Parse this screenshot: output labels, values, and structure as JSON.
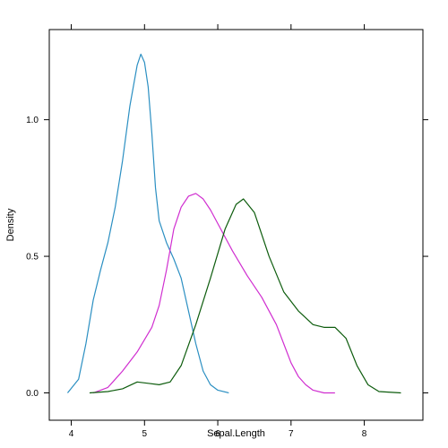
{
  "chart_data": {
    "type": "line",
    "xlabel": "Sepal.Length",
    "ylabel": "Density",
    "xlim": [
      3.7,
      8.8
    ],
    "ylim": [
      -0.1,
      1.33
    ],
    "x_ticks": [
      4,
      5,
      6,
      7,
      8
    ],
    "x_tick_labels": [
      "4",
      "5",
      "6",
      "7",
      "8"
    ],
    "y_ticks": [
      0.0,
      0.5,
      1.0
    ],
    "y_tick_labels": [
      "0.0",
      "0.5",
      "1.0"
    ],
    "grid": false,
    "series": [
      {
        "color": "#2b8fc2",
        "x": [
          3.95,
          4.1,
          4.2,
          4.3,
          4.4,
          4.5,
          4.6,
          4.7,
          4.8,
          4.9,
          4.95,
          5.0,
          5.05,
          5.1,
          5.15,
          5.2,
          5.3,
          5.4,
          5.5,
          5.6,
          5.7,
          5.8,
          5.9,
          6.0,
          6.15
        ],
        "y": [
          0.0,
          0.05,
          0.18,
          0.34,
          0.45,
          0.55,
          0.68,
          0.85,
          1.05,
          1.2,
          1.24,
          1.21,
          1.12,
          0.95,
          0.75,
          0.63,
          0.55,
          0.49,
          0.42,
          0.3,
          0.18,
          0.08,
          0.03,
          0.01,
          0.0
        ]
      },
      {
        "color": "#d02ed0",
        "x": [
          4.3,
          4.5,
          4.7,
          4.9,
          5.1,
          5.2,
          5.3,
          5.4,
          5.5,
          5.6,
          5.7,
          5.8,
          5.9,
          6.0,
          6.2,
          6.4,
          6.6,
          6.8,
          6.9,
          7.0,
          7.1,
          7.2,
          7.3,
          7.45,
          7.6
        ],
        "y": [
          0.0,
          0.02,
          0.08,
          0.15,
          0.24,
          0.32,
          0.45,
          0.6,
          0.68,
          0.72,
          0.73,
          0.71,
          0.67,
          0.62,
          0.52,
          0.43,
          0.35,
          0.25,
          0.18,
          0.11,
          0.06,
          0.03,
          0.01,
          0.0,
          0.0
        ]
      },
      {
        "color": "#0d5c0d",
        "x": [
          4.25,
          4.5,
          4.7,
          4.9,
          5.05,
          5.2,
          5.35,
          5.5,
          5.7,
          5.9,
          6.1,
          6.25,
          6.35,
          6.5,
          6.7,
          6.9,
          7.1,
          7.3,
          7.45,
          7.6,
          7.75,
          7.9,
          8.05,
          8.2,
          8.5
        ],
        "y": [
          0.0,
          0.005,
          0.015,
          0.04,
          0.035,
          0.03,
          0.04,
          0.1,
          0.25,
          0.42,
          0.6,
          0.69,
          0.71,
          0.66,
          0.5,
          0.37,
          0.3,
          0.25,
          0.24,
          0.24,
          0.2,
          0.1,
          0.03,
          0.005,
          0.0
        ]
      }
    ]
  }
}
